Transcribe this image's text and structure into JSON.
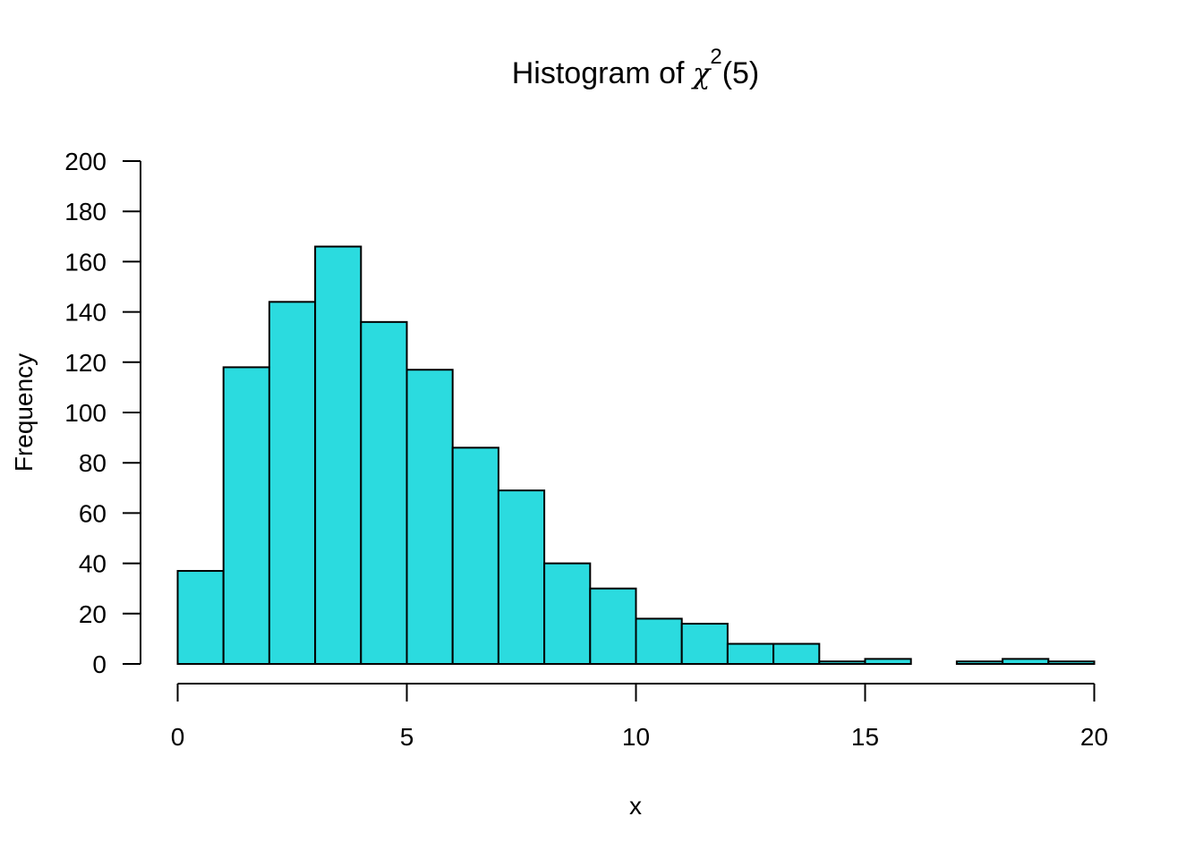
{
  "chart_data": {
    "type": "bar",
    "title": {
      "prefix": "Histogram of ",
      "symbol": "χ",
      "superscript": "2",
      "suffix": "(5)"
    },
    "xlabel": "x",
    "ylabel": "Frequency",
    "bin_edges": [
      0,
      1,
      2,
      3,
      4,
      5,
      6,
      7,
      8,
      9,
      10,
      11,
      12,
      13,
      14,
      15,
      16,
      17,
      18,
      19,
      20
    ],
    "values": [
      37,
      118,
      144,
      166,
      136,
      117,
      86,
      69,
      40,
      30,
      18,
      16,
      8,
      8,
      1,
      2,
      0,
      1,
      2,
      1
    ],
    "xlim": [
      0,
      20
    ],
    "ylim": [
      0,
      200
    ],
    "x_ticks": [
      "0",
      "5",
      "10",
      "15",
      "20"
    ],
    "y_ticks": [
      "0",
      "20",
      "40",
      "60",
      "80",
      "100",
      "120",
      "140",
      "160",
      "180",
      "200"
    ],
    "bar_color": "#2bdbdf",
    "grid": false,
    "legend": "none"
  }
}
